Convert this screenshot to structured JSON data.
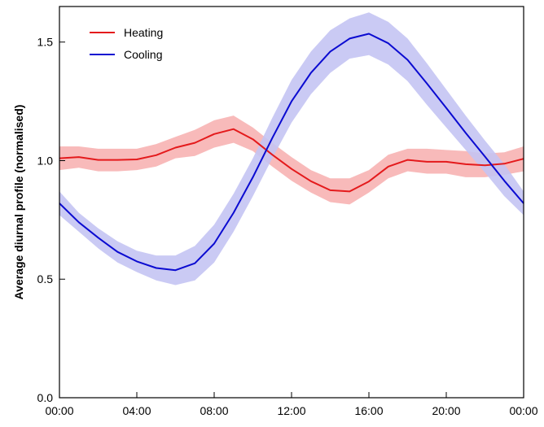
{
  "chart_data": {
    "type": "line",
    "title": "",
    "xlabel": "",
    "ylabel": "Average diurnal profile (normalised)",
    "x": [
      "00:00",
      "01:00",
      "02:00",
      "03:00",
      "04:00",
      "05:00",
      "06:00",
      "07:00",
      "08:00",
      "09:00",
      "10:00",
      "11:00",
      "12:00",
      "13:00",
      "14:00",
      "15:00",
      "16:00",
      "17:00",
      "18:00",
      "19:00",
      "20:00",
      "21:00",
      "22:00",
      "23:00",
      "24:00"
    ],
    "xlim": [
      0,
      24
    ],
    "xticks": [
      0,
      4,
      8,
      12,
      16,
      20,
      24
    ],
    "xtick_labels": [
      "00:00",
      "04:00",
      "08:00",
      "12:00",
      "16:00",
      "20:00",
      "00:00"
    ],
    "ylim": [
      0,
      1.65
    ],
    "yticks": [
      0,
      0.5,
      1.0,
      1.5
    ],
    "ytick_labels": [
      "0.0",
      "0.5",
      "1.0",
      "1.5"
    ],
    "grid": false,
    "legend_position": "top-left",
    "series": [
      {
        "name": "Heating",
        "color": "#e41a1c",
        "band_color": "#f7b3b3",
        "values": [
          1.01,
          1.015,
          1.003,
          1.003,
          1.005,
          1.023,
          1.055,
          1.075,
          1.112,
          1.133,
          1.09,
          1.025,
          0.965,
          0.913,
          0.875,
          0.87,
          0.912,
          0.975,
          1.003,
          0.995,
          0.995,
          0.985,
          0.98,
          0.987,
          1.008
        ],
        "upper": [
          1.06,
          1.06,
          1.05,
          1.05,
          1.05,
          1.07,
          1.1,
          1.13,
          1.17,
          1.19,
          1.14,
          1.075,
          1.015,
          0.96,
          0.925,
          0.925,
          0.96,
          1.025,
          1.05,
          1.05,
          1.045,
          1.04,
          1.03,
          1.035,
          1.06
        ],
        "lower": [
          0.96,
          0.97,
          0.955,
          0.955,
          0.96,
          0.975,
          1.01,
          1.02,
          1.055,
          1.075,
          1.04,
          0.975,
          0.915,
          0.865,
          0.825,
          0.815,
          0.865,
          0.925,
          0.955,
          0.945,
          0.945,
          0.93,
          0.93,
          0.94,
          0.955
        ]
      },
      {
        "name": "Cooling",
        "color": "#0b0bd1",
        "band_color": "#c4c4f3",
        "values": [
          0.82,
          0.74,
          0.675,
          0.615,
          0.575,
          0.547,
          0.538,
          0.567,
          0.65,
          0.78,
          0.93,
          1.095,
          1.25,
          1.37,
          1.46,
          1.515,
          1.535,
          1.495,
          1.425,
          1.325,
          1.222,
          1.117,
          1.017,
          0.915,
          0.82
        ],
        "upper": [
          0.87,
          0.78,
          0.715,
          0.66,
          0.62,
          0.6,
          0.6,
          0.64,
          0.73,
          0.86,
          1.01,
          1.18,
          1.34,
          1.46,
          1.55,
          1.6,
          1.625,
          1.585,
          1.515,
          1.41,
          1.3,
          1.19,
          1.085,
          0.985,
          0.87
        ],
        "lower": [
          0.77,
          0.7,
          0.63,
          0.57,
          0.53,
          0.495,
          0.475,
          0.495,
          0.57,
          0.7,
          0.85,
          1.01,
          1.16,
          1.28,
          1.37,
          1.43,
          1.445,
          1.405,
          1.335,
          1.235,
          1.14,
          1.045,
          0.95,
          0.85,
          0.77
        ]
      }
    ]
  }
}
